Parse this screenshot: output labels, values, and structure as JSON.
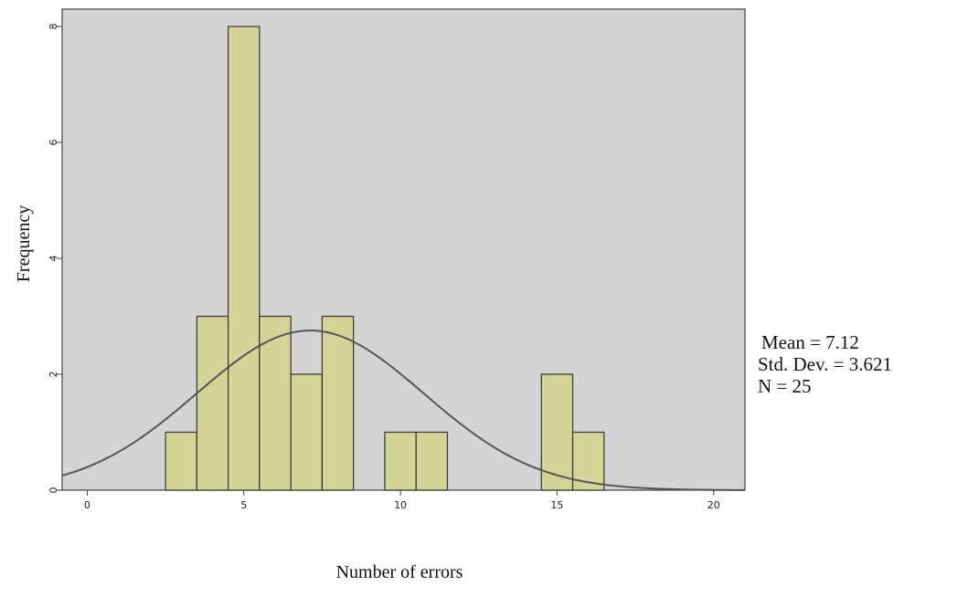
{
  "chart_data": {
    "type": "histogram",
    "xlabel": "Number of errors",
    "ylabel": "Frequency",
    "xlim": [
      -0.8,
      21
    ],
    "ylim": [
      0,
      8.3
    ],
    "x_ticks": [
      0,
      5,
      10,
      15,
      20
    ],
    "y_ticks": [
      0,
      2,
      4,
      6,
      8
    ],
    "bin_width": 1,
    "bars": [
      {
        "x": 3,
        "count": 1
      },
      {
        "x": 4,
        "count": 3
      },
      {
        "x": 5,
        "count": 8
      },
      {
        "x": 6,
        "count": 3
      },
      {
        "x": 7,
        "count": 2
      },
      {
        "x": 8,
        "count": 3
      },
      {
        "x": 10,
        "count": 1
      },
      {
        "x": 11,
        "count": 1
      },
      {
        "x": 15,
        "count": 2
      },
      {
        "x": 16,
        "count": 1
      }
    ],
    "normal_curve": {
      "mean": 7.12,
      "sd": 3.621,
      "n": 25
    },
    "stats_lines": [
      "Mean = 7.12",
      "Std. Dev. = 3.621",
      "N = 25"
    ],
    "grid": false,
    "colors": {
      "plot_background": "#d4d4d4",
      "bar_fill": "#d4d497",
      "bar_stroke": "#333333",
      "curve": "#555555",
      "axis": "#444444"
    }
  }
}
